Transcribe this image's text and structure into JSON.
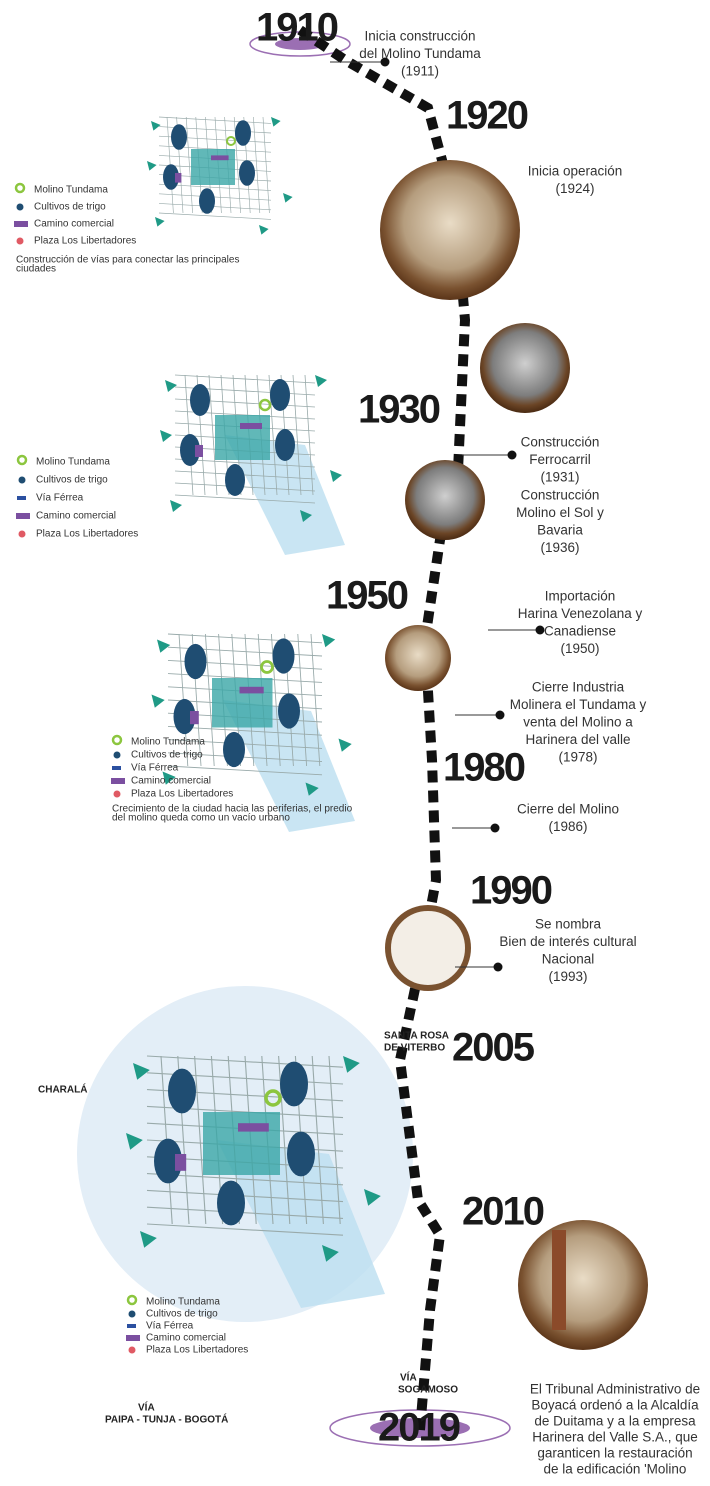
{
  "years": [
    "1910",
    "1920",
    "1930",
    "1950",
    "1980",
    "1990",
    "2005",
    "2010",
    "2019"
  ],
  "events": [
    {
      "lines": [
        "Inicia construcción",
        "del Molino Tundama",
        "(1911)"
      ]
    },
    {
      "lines": [
        "Inicia operación",
        "(1924)"
      ]
    },
    {
      "lines": [
        "Construcción",
        "Ferrocarril",
        "(1931)"
      ]
    },
    {
      "lines": [
        "Construcción",
        "Molino el Sol y",
        "Bavaria",
        "(1936)"
      ]
    },
    {
      "lines": [
        "Importación",
        "Harina Venezolana y",
        "Canadiense",
        "(1950)"
      ]
    },
    {
      "lines": [
        "Cierre Industria",
        "Molinera el Tundama y",
        "venta del Molino a",
        "Harinera del valle",
        "(1978)"
      ]
    },
    {
      "lines": [
        "Cierre del Molino",
        "(1986)"
      ]
    },
    {
      "lines": [
        "Se nombra",
        "Bien de interés cultural",
        "Nacional",
        "(1993)"
      ]
    },
    {
      "lines": [
        "El Tribunal Administrativo de",
        "Boyacá ordenó a la Alcaldía",
        "de Duitama y a la empresa",
        "Harinera del Valle S.A., que",
        "garanticen la restauración",
        "de la edificación 'Molino"
      ]
    }
  ],
  "maps": [
    {
      "legend": [
        "Molino Tundama",
        "Cultivos de trigo",
        "Camino comercial",
        "Plaza Los Libertadores"
      ],
      "note": [
        "Construcción de vías para conectar las principales",
        "ciudades"
      ]
    },
    {
      "legend": [
        "Molino Tundama",
        "Cultivos de trigo",
        "Vía Férrea",
        "Camino comercial",
        "Plaza Los Libertadores"
      ]
    },
    {
      "legend": [
        "Molino Tundama",
        "Cultivos de trigo",
        "Vía Férrea",
        "Camino comercial",
        "Plaza Los Libertadores"
      ],
      "note": [
        "Crecimiento de la ciudad hacia las periferias, el predio",
        "del molino queda como un vacío urbano"
      ]
    },
    {
      "legend": [
        "Molino Tundama",
        "Cultivos de trigo",
        "Vía Férrea",
        "Camino comercial",
        "Plaza Los Libertadores"
      ]
    }
  ],
  "places": [
    "CHARALÁ",
    "SANTA ROSA",
    "DE VITERBO",
    "VÍA",
    "SOGAMOSO",
    "VÍA",
    "PAIPA - TUNJA - BOGOTÁ"
  ]
}
